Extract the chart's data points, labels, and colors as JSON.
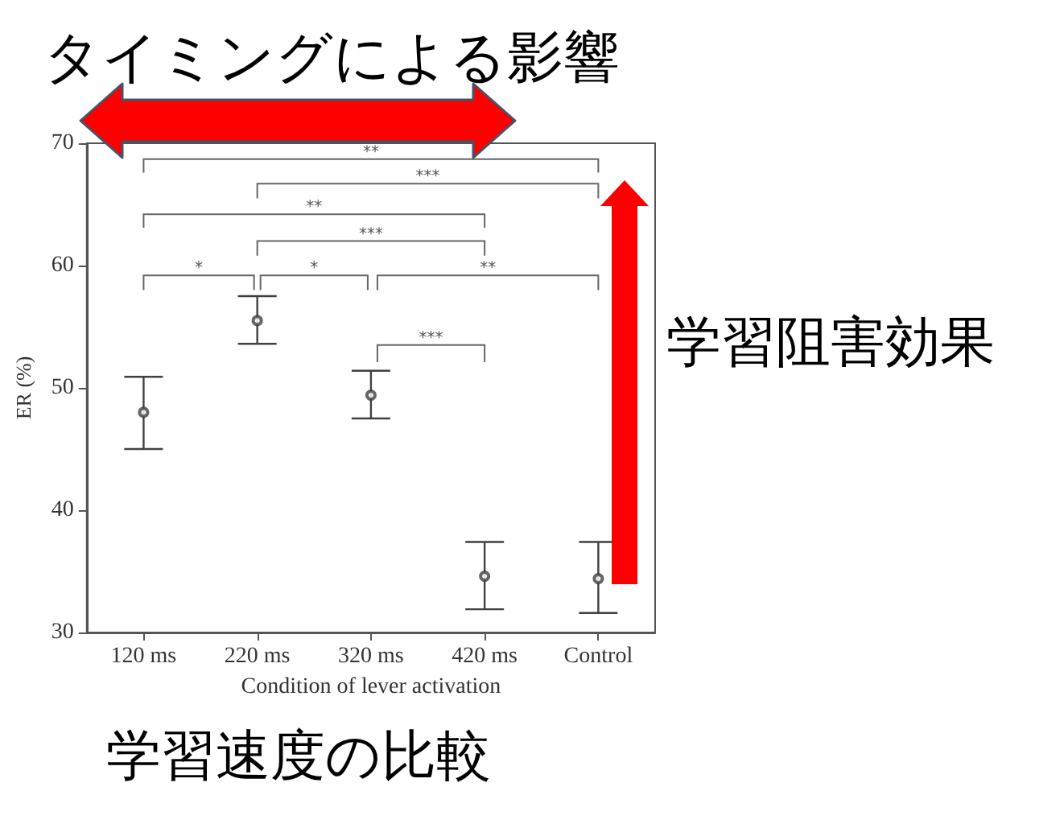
{
  "chart_data": {
    "type": "scatter",
    "title": "タイミングによる影響",
    "xlabel": "Condition of lever activation",
    "ylabel": "ER (%)",
    "categories": [
      "120 ms",
      "220 ms",
      "320 ms",
      "420 ms",
      "Control"
    ],
    "values": [
      48.0,
      55.5,
      49.4,
      34.6,
      34.4
    ],
    "errors": [
      [
        45.0,
        50.9
      ],
      [
        53.6,
        57.5
      ],
      [
        47.5,
        51.4
      ],
      [
        31.9,
        37.4
      ],
      [
        31.6,
        37.4
      ]
    ],
    "color": "#404040",
    "marker": "circle",
    "ylim": [
      30,
      70
    ],
    "yticks": [
      30,
      40,
      50,
      60,
      70
    ],
    "annotations": [
      "**",
      "***",
      "**",
      "***",
      "*",
      "*",
      "**",
      "***",
      "学習阻害効果",
      "学習速度の比較"
    ]
  }
}
